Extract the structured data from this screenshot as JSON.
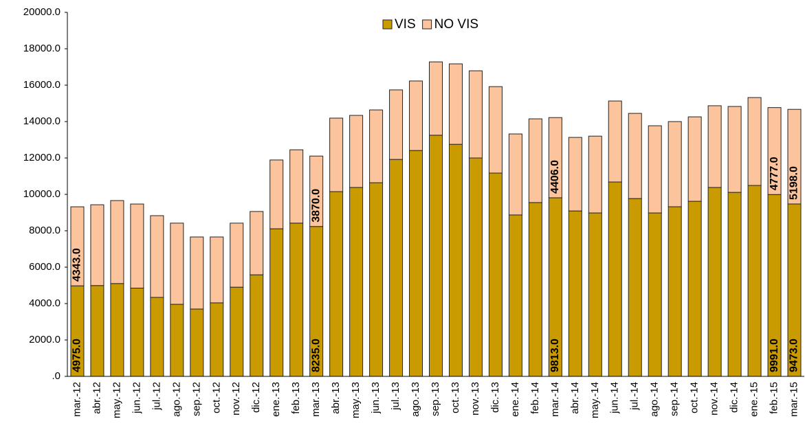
{
  "chart_data": {
    "type": "stacked_bar",
    "categories": [
      "mar.-12",
      "abr.-12",
      "may.-12",
      "jun.-12",
      "jul.-12",
      "ago.-12",
      "sep.-12",
      "oct.-12",
      "nov.-12",
      "dic.-12",
      "ene.-13",
      "feb.-13",
      "mar.-13",
      "abr.-13",
      "may.-13",
      "jun.-13",
      "jul.-13",
      "ago.-13",
      "sep.-13",
      "oct.-13",
      "nov.-13",
      "dic.-13",
      "ene.-14",
      "feb.-14",
      "mar.-14",
      "abr.-14",
      "may.-14",
      "jun.-14",
      "jul.-14",
      "ago.-14",
      "sep.-14",
      "oct.-14",
      "nov.-14",
      "dic.-14",
      "ene.-15",
      "feb.-15",
      "mar.-15"
    ],
    "series": [
      {
        "name": "VIS",
        "color": "#c99b00",
        "values": [
          4975,
          4990,
          5100,
          4850,
          4340,
          3960,
          3700,
          4040,
          4900,
          5580,
          8110,
          8420,
          8235,
          10150,
          10380,
          10640,
          11920,
          12410,
          13250,
          12750,
          12000,
          11170,
          8870,
          9550,
          9813,
          9090,
          8980,
          10680,
          9770,
          8980,
          9320,
          9620,
          10380,
          10110,
          10490,
          9991,
          9473
        ],
        "value_labels": [
          "4975.0",
          null,
          null,
          null,
          null,
          null,
          null,
          null,
          null,
          null,
          null,
          null,
          "8235.0",
          null,
          null,
          null,
          null,
          null,
          null,
          null,
          null,
          null,
          null,
          null,
          "9813.0",
          null,
          null,
          null,
          null,
          null,
          null,
          null,
          null,
          null,
          null,
          "9991.0",
          "9473.0"
        ]
      },
      {
        "name": "NO VIS",
        "color": "#fbc49c",
        "values": [
          4343,
          4440,
          4560,
          4620,
          4490,
          4460,
          3960,
          3620,
          3520,
          3480,
          3780,
          4030,
          3870,
          4040,
          3960,
          4000,
          3820,
          3820,
          4030,
          4420,
          4790,
          4750,
          4450,
          4600,
          4406,
          4040,
          4220,
          4450,
          4680,
          4790,
          4680,
          4640,
          4490,
          4720,
          4830,
          4777,
          5198
        ],
        "value_labels": [
          "4343.0",
          null,
          null,
          null,
          null,
          null,
          null,
          null,
          null,
          null,
          null,
          null,
          "3870.0",
          null,
          null,
          null,
          null,
          null,
          null,
          null,
          null,
          null,
          null,
          null,
          "4406.0",
          null,
          null,
          null,
          null,
          null,
          null,
          null,
          null,
          null,
          null,
          "4777.0",
          "5198.0"
        ]
      }
    ],
    "ylim": [
      0,
      20000
    ],
    "yticks": [
      {
        "value": 0,
        "label": ".0"
      },
      {
        "value": 2000,
        "label": "2000.0"
      },
      {
        "value": 4000,
        "label": "4000.0"
      },
      {
        "value": 6000,
        "label": "6000.0"
      },
      {
        "value": 8000,
        "label": "8000.0"
      },
      {
        "value": 10000,
        "label": "10000.0"
      },
      {
        "value": 12000,
        "label": "12000.0"
      },
      {
        "value": 14000,
        "label": "14000.0"
      },
      {
        "value": 16000,
        "label": "16000.0"
      },
      {
        "value": 18000,
        "label": "18000.0"
      },
      {
        "value": 20000,
        "label": "20000.0"
      }
    ],
    "legend": "top"
  }
}
